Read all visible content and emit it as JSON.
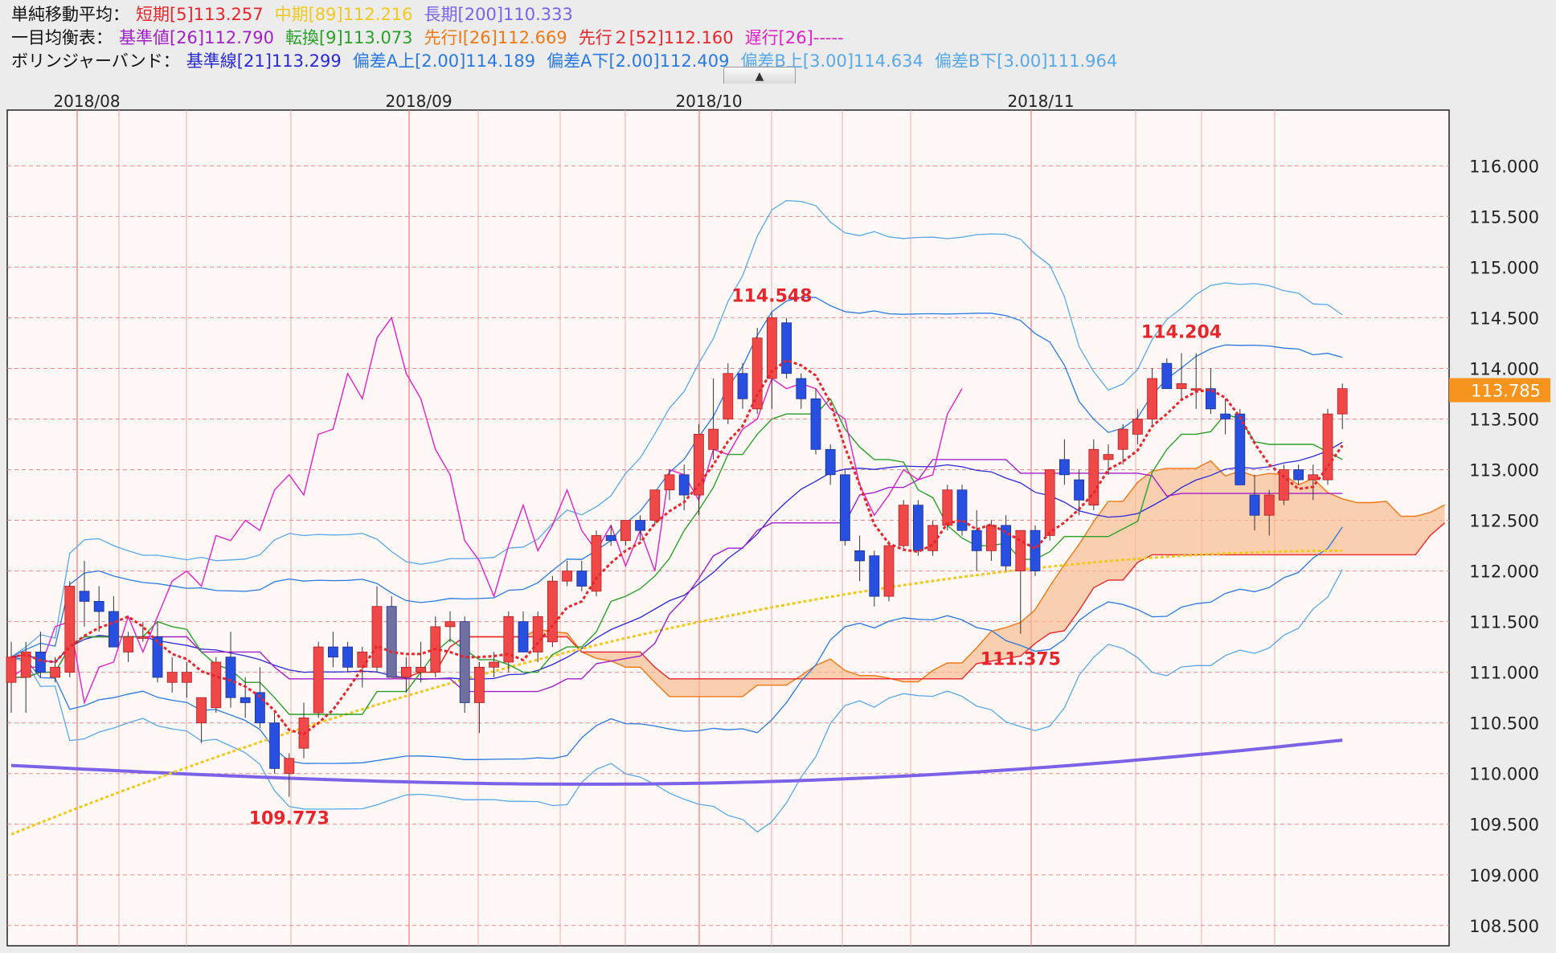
{
  "legend": {
    "sma": {
      "label": "単純移動平均：",
      "short": "短期[5]113.257",
      "mid": "中期[89]112.216",
      "long": "長期[200]110.333"
    },
    "ichimoku": {
      "label": "一目均衡表：",
      "kijun": "基準値[26]112.790",
      "tenkan": "転換[9]113.073",
      "senkou1": "先行Ⅰ[26]112.669",
      "senkou2": "先行２[52]112.160",
      "chikou": "遅行[26]-----"
    },
    "bollinger": {
      "label": "ボリンジャーバンド：",
      "base": "基準線[21]113.299",
      "a_up": "偏差A上[2.00]114.189",
      "a_down": "偏差A下[2.00]112.409",
      "b_up": "偏差B上[3.00]114.634",
      "b_down": "偏差B下[3.00]111.964"
    }
  },
  "collapse_button": "▲",
  "colors": {
    "sma_short": "#e8252b",
    "sma_mid": "#f0c81e",
    "sma_long": "#7b62e8",
    "kijun": "#a020c8",
    "tenkan": "#28a028",
    "senkou1": "#f07814",
    "senkou2": "#e8252b",
    "chikou": "#e020c8",
    "bb_base": "#2828d8",
    "bb_a": "#2878e0",
    "bb_b": "#58a8e8",
    "candle_up": "#f04848",
    "candle_down": "#2850e0",
    "candle_gray": "#7070a0",
    "current_price_bg": "#f7941d"
  },
  "chart_data": {
    "type": "candlestick",
    "x_labels": [
      "2018/08",
      "2018/09",
      "2018/10",
      "2018/11"
    ],
    "y_ticks": [
      "116.000",
      "115.500",
      "115.000",
      "114.500",
      "114.000",
      "113.500",
      "113.000",
      "112.500",
      "112.000",
      "111.500",
      "111.000",
      "110.500",
      "110.000",
      "109.500",
      "109.000",
      "108.500"
    ],
    "ylim": [
      108.3,
      116.55
    ],
    "current_price": "113.785",
    "annotations": [
      {
        "text": "114.548",
        "value": 114.548
      },
      {
        "text": "114.204",
        "value": 114.204
      },
      {
        "text": "111.375",
        "value": 111.375
      },
      {
        "text": "109.773",
        "value": 109.773
      }
    ],
    "candles": [
      {
        "o": 110.9,
        "h": 111.3,
        "l": 110.6,
        "c": 111.15
      },
      {
        "o": 110.95,
        "h": 111.3,
        "l": 110.6,
        "c": 111.2
      },
      {
        "o": 111.2,
        "h": 111.4,
        "l": 110.95,
        "c": 111.0
      },
      {
        "o": 110.95,
        "h": 111.15,
        "l": 110.9,
        "c": 111.05
      },
      {
        "o": 111.0,
        "h": 111.9,
        "l": 110.95,
        "c": 111.85
      },
      {
        "o": 111.8,
        "h": 112.1,
        "l": 111.45,
        "c": 111.7
      },
      {
        "o": 111.7,
        "h": 111.85,
        "l": 111.4,
        "c": 111.6
      },
      {
        "o": 111.6,
        "h": 111.75,
        "l": 111.25,
        "c": 111.25
      },
      {
        "o": 111.2,
        "h": 111.4,
        "l": 111.1,
        "c": 111.35
      },
      {
        "o": 111.35,
        "h": 111.5,
        "l": 111.3,
        "c": 111.35
      },
      {
        "o": 111.35,
        "h": 111.5,
        "l": 110.9,
        "c": 110.95
      },
      {
        "o": 110.9,
        "h": 111.15,
        "l": 110.8,
        "c": 111.0
      },
      {
        "o": 110.9,
        "h": 111.1,
        "l": 110.75,
        "c": 111.0
      },
      {
        "o": 110.5,
        "h": 110.75,
        "l": 110.3,
        "c": 110.75
      },
      {
        "o": 110.65,
        "h": 111.15,
        "l": 110.6,
        "c": 111.1
      },
      {
        "o": 111.15,
        "h": 111.4,
        "l": 110.65,
        "c": 110.75
      },
      {
        "o": 110.75,
        "h": 110.95,
        "l": 110.55,
        "c": 110.7
      },
      {
        "o": 110.8,
        "h": 111.05,
        "l": 110.45,
        "c": 110.5
      },
      {
        "o": 110.5,
        "h": 110.6,
        "l": 110.0,
        "c": 110.05
      },
      {
        "o": 110.0,
        "h": 110.2,
        "l": 109.77,
        "c": 110.15
      },
      {
        "o": 110.25,
        "h": 110.7,
        "l": 110.15,
        "c": 110.55
      },
      {
        "o": 110.6,
        "h": 111.3,
        "l": 110.55,
        "c": 111.25
      },
      {
        "o": 111.25,
        "h": 111.4,
        "l": 111.05,
        "c": 111.15
      },
      {
        "o": 111.25,
        "h": 111.3,
        "l": 111.0,
        "c": 111.05
      },
      {
        "o": 111.05,
        "h": 111.25,
        "l": 110.85,
        "c": 111.2
      },
      {
        "o": 111.05,
        "h": 111.85,
        "l": 111.0,
        "c": 111.65
      },
      {
        "o": 111.65,
        "h": 111.75,
        "l": 110.95,
        "c": 110.95
      },
      {
        "o": 110.95,
        "h": 111.15,
        "l": 110.8,
        "c": 111.05
      },
      {
        "o": 111.0,
        "h": 111.3,
        "l": 110.9,
        "c": 111.05
      },
      {
        "o": 111.0,
        "h": 111.55,
        "l": 110.95,
        "c": 111.45
      },
      {
        "o": 111.45,
        "h": 111.6,
        "l": 111.3,
        "c": 111.5
      },
      {
        "o": 111.5,
        "h": 111.55,
        "l": 110.6,
        "c": 110.7
      },
      {
        "o": 110.7,
        "h": 111.1,
        "l": 110.4,
        "c": 111.05
      },
      {
        "o": 111.05,
        "h": 111.2,
        "l": 110.95,
        "c": 111.1
      },
      {
        "o": 111.1,
        "h": 111.6,
        "l": 111.0,
        "c": 111.55
      },
      {
        "o": 111.5,
        "h": 111.6,
        "l": 111.2,
        "c": 111.2
      },
      {
        "o": 111.2,
        "h": 111.6,
        "l": 111.1,
        "c": 111.55
      },
      {
        "o": 111.3,
        "h": 111.95,
        "l": 111.25,
        "c": 111.9
      },
      {
        "o": 111.9,
        "h": 112.1,
        "l": 111.85,
        "c": 112.0
      },
      {
        "o": 112.0,
        "h": 112.1,
        "l": 111.8,
        "c": 111.85
      },
      {
        "o": 111.8,
        "h": 112.4,
        "l": 111.75,
        "c": 112.35
      },
      {
        "o": 112.35,
        "h": 112.45,
        "l": 112.25,
        "c": 112.3
      },
      {
        "o": 112.3,
        "h": 112.5,
        "l": 112.25,
        "c": 112.5
      },
      {
        "o": 112.5,
        "h": 112.55,
        "l": 112.3,
        "c": 112.4
      },
      {
        "o": 112.5,
        "h": 112.8,
        "l": 112.45,
        "c": 112.8
      },
      {
        "o": 112.8,
        "h": 113.0,
        "l": 112.7,
        "c": 112.95
      },
      {
        "o": 112.95,
        "h": 113.05,
        "l": 112.6,
        "c": 112.75
      },
      {
        "o": 112.75,
        "h": 113.45,
        "l": 112.55,
        "c": 113.35
      },
      {
        "o": 113.2,
        "h": 113.9,
        "l": 113.1,
        "c": 113.4
      },
      {
        "o": 113.5,
        "h": 114.05,
        "l": 113.45,
        "c": 113.95
      },
      {
        "o": 113.95,
        "h": 114.05,
        "l": 113.6,
        "c": 113.7
      },
      {
        "o": 113.6,
        "h": 114.4,
        "l": 113.55,
        "c": 114.3
      },
      {
        "o": 113.9,
        "h": 114.55,
        "l": 113.6,
        "c": 114.5
      },
      {
        "o": 114.45,
        "h": 114.5,
        "l": 113.9,
        "c": 113.95
      },
      {
        "o": 113.9,
        "h": 113.95,
        "l": 113.6,
        "c": 113.7
      },
      {
        "o": 113.7,
        "h": 113.8,
        "l": 113.15,
        "c": 113.2
      },
      {
        "o": 113.2,
        "h": 113.25,
        "l": 112.85,
        "c": 112.95
      },
      {
        "o": 112.95,
        "h": 113.0,
        "l": 112.25,
        "c": 112.3
      },
      {
        "o": 112.2,
        "h": 112.35,
        "l": 111.9,
        "c": 112.1
      },
      {
        "o": 112.15,
        "h": 112.2,
        "l": 111.65,
        "c": 111.75
      },
      {
        "o": 111.75,
        "h": 112.3,
        "l": 111.7,
        "c": 112.25
      },
      {
        "o": 112.25,
        "h": 112.7,
        "l": 112.2,
        "c": 112.65
      },
      {
        "o": 112.65,
        "h": 112.7,
        "l": 112.15,
        "c": 112.2
      },
      {
        "o": 112.2,
        "h": 112.5,
        "l": 112.15,
        "c": 112.45
      },
      {
        "o": 112.45,
        "h": 112.85,
        "l": 112.4,
        "c": 112.8
      },
      {
        "o": 112.8,
        "h": 112.85,
        "l": 112.35,
        "c": 112.4
      },
      {
        "o": 112.4,
        "h": 112.6,
        "l": 112.0,
        "c": 112.2
      },
      {
        "o": 112.2,
        "h": 112.5,
        "l": 112.1,
        "c": 112.45
      },
      {
        "o": 112.45,
        "h": 112.55,
        "l": 112.0,
        "c": 112.05
      },
      {
        "o": 112.0,
        "h": 112.4,
        "l": 111.38,
        "c": 112.4
      },
      {
        "o": 112.4,
        "h": 112.45,
        "l": 111.95,
        "c": 112.0
      },
      {
        "o": 112.35,
        "h": 113.0,
        "l": 112.3,
        "c": 113.0
      },
      {
        "o": 113.1,
        "h": 113.3,
        "l": 112.85,
        "c": 112.95
      },
      {
        "o": 112.9,
        "h": 113.0,
        "l": 112.55,
        "c": 112.7
      },
      {
        "o": 112.65,
        "h": 113.3,
        "l": 112.6,
        "c": 113.2
      },
      {
        "o": 113.1,
        "h": 113.25,
        "l": 112.95,
        "c": 113.15
      },
      {
        "o": 113.2,
        "h": 113.45,
        "l": 113.05,
        "c": 113.4
      },
      {
        "o": 113.35,
        "h": 113.6,
        "l": 113.25,
        "c": 113.5
      },
      {
        "o": 113.5,
        "h": 114.0,
        "l": 113.45,
        "c": 113.9
      },
      {
        "o": 114.05,
        "h": 114.1,
        "l": 113.8,
        "c": 113.8
      },
      {
        "o": 113.8,
        "h": 114.15,
        "l": 113.7,
        "c": 113.85
      },
      {
        "o": 113.8,
        "h": 114.15,
        "l": 113.6,
        "c": 113.8
      },
      {
        "o": 113.8,
        "h": 114.0,
        "l": 113.55,
        "c": 113.6
      },
      {
        "o": 113.55,
        "h": 113.7,
        "l": 113.35,
        "c": 113.5
      },
      {
        "o": 113.55,
        "h": 113.6,
        "l": 112.85,
        "c": 112.85
      },
      {
        "o": 112.75,
        "h": 112.95,
        "l": 112.4,
        "c": 112.55
      },
      {
        "o": 112.55,
        "h": 112.8,
        "l": 112.35,
        "c": 112.75
      },
      {
        "o": 112.7,
        "h": 113.05,
        "l": 112.65,
        "c": 113.0
      },
      {
        "o": 113.0,
        "h": 113.05,
        "l": 112.85,
        "c": 112.9
      },
      {
        "o": 112.9,
        "h": 113.05,
        "l": 112.7,
        "c": 112.95
      },
      {
        "o": 112.9,
        "h": 113.6,
        "l": 112.85,
        "c": 113.55
      },
      {
        "o": 113.55,
        "h": 113.85,
        "l": 113.4,
        "c": 113.8
      }
    ]
  }
}
